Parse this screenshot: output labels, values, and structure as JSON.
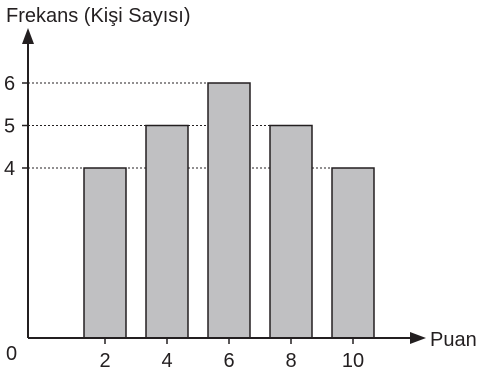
{
  "chart_data": {
    "type": "bar",
    "title": "",
    "ylabel": "Frekans (Kişi Sayısı)",
    "xlabel": "Puan",
    "origin_label": "0",
    "categories": [
      "2",
      "4",
      "6",
      "8",
      "10"
    ],
    "values": [
      4,
      5,
      6,
      5,
      4
    ],
    "yticks": [
      {
        "value": 4,
        "label": "4"
      },
      {
        "value": 5,
        "label": "5"
      },
      {
        "value": 6,
        "label": "6"
      }
    ],
    "grid": "dotted reference lines at y = 4, 5, 6",
    "bar_color": "#c0c0c2",
    "line_color": "#231f20"
  }
}
